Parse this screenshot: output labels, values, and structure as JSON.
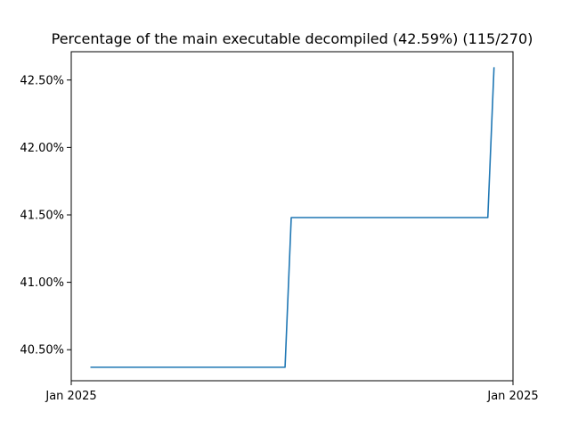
{
  "chart_data": {
    "type": "line",
    "title": "Percentage of the main executable decompiled (42.59%) (115/270)",
    "xlabel": "",
    "ylabel": "",
    "x_tick_labels": [
      "Jan 2025",
      "Jan 2025"
    ],
    "y_tick_labels": [
      "40.50%",
      "41.00%",
      "41.50%",
      "42.00%",
      "42.50%"
    ],
    "y_ticks": [
      40.5,
      41.0,
      41.5,
      42.0,
      42.5
    ],
    "ylim": [
      40.27,
      42.71
    ],
    "grid": false,
    "series": [
      {
        "color": "#1f77b4",
        "x": [
          0.045,
          0.484,
          0.498,
          0.943,
          0.957
        ],
        "y": [
          40.37,
          40.37,
          41.48,
          41.48,
          42.59
        ]
      }
    ],
    "xlim": [
      0,
      1
    ]
  }
}
